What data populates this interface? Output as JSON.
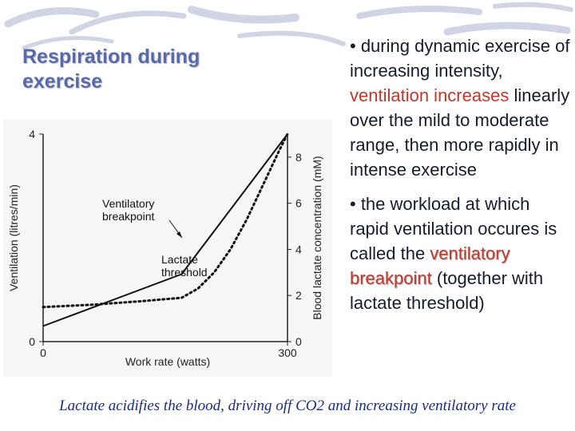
{
  "slide": {
    "title": "Respiration during exercise",
    "bullets": [
      {
        "before": "• during dynamic exercise of increasing intensity, ",
        "highlight": "ventilation increases",
        "after": " linearly over the mild to moderate range, then more rapidly in intense exercise"
      },
      {
        "before": "• the workload at which rapid ventilation occures is called the ",
        "highlight": "ventilatory breakpoint",
        "after": " (together with lactate threshold)"
      }
    ],
    "caption": "Lactate acidifies the blood, driving off CO2 and increasing ventilatory rate",
    "colors": {
      "title": "#5a6aa8",
      "highlight": "#c0392b",
      "caption": "#1a2a8a"
    }
  },
  "chart_data": {
    "type": "line",
    "title": "",
    "xlabel": "Work rate (watts)",
    "ylabel_left": "Ventilation (litres/min)",
    "ylabel_right": "Blood lactate concentration (mM)",
    "xlim": [
      0,
      300
    ],
    "ylim_left": [
      0,
      4
    ],
    "ylim_right": [
      0,
      9
    ],
    "x_ticks": [
      "0",
      "300"
    ],
    "y_left_ticks": [
      "0",
      "4"
    ],
    "y_right_ticks": [
      "0",
      "2",
      "4",
      "6",
      "8"
    ],
    "grid": false,
    "series": [
      {
        "axis": "left",
        "style": "solid",
        "x": [
          0,
          170,
          300
        ],
        "y": [
          0.3,
          1.3,
          4.0
        ]
      },
      {
        "axis": "right",
        "style": "dotted",
        "x": [
          0,
          60,
          120,
          170,
          190,
          210,
          230,
          250,
          270,
          290,
          300
        ],
        "y": [
          1.5,
          1.6,
          1.75,
          1.9,
          2.3,
          3.0,
          4.0,
          5.3,
          6.8,
          8.3,
          9.0
        ]
      }
    ],
    "annotations": [
      {
        "text": [
          "Ventilatory",
          "breakpoint"
        ]
      },
      {
        "text": [
          "Lactate",
          "threshold"
        ]
      }
    ]
  }
}
